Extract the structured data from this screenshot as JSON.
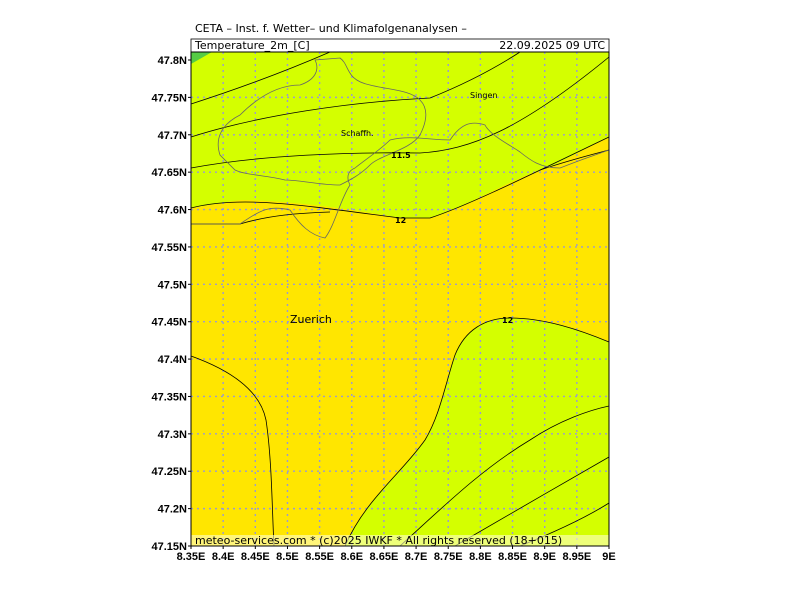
{
  "header": {
    "title": "CETA – Inst. f. Wetter– und Klimafolgenanalysen –",
    "parameter": "Temperature_2m_[C]",
    "valid": "22.09.2025  09 UTC"
  },
  "axes": {
    "yticks": [
      "47.8N",
      "47.75N",
      "47.7N",
      "47.65N",
      "47.6N",
      "47.55N",
      "47.5N",
      "47.45N",
      "47.4N",
      "47.35N",
      "47.3N",
      "47.25N",
      "47.2N",
      "47.15N"
    ],
    "xticks": [
      "8.35E",
      "8.4E",
      "8.45E",
      "8.5E",
      "8.55E",
      "8.6E",
      "8.65E",
      "8.7E",
      "8.75E",
      "8.8E",
      "8.85E",
      "8.9E",
      "8.95E",
      "9E"
    ]
  },
  "places": {
    "singen": "Singen",
    "schaffhausen": "Schaffh.",
    "zuerich": "Zuerich"
  },
  "contour_labels": [
    "11.5",
    "12",
    "12"
  ],
  "footer": "meteo-services.com * (c)2025 IWKF * All rights reserved (18+015)"
}
